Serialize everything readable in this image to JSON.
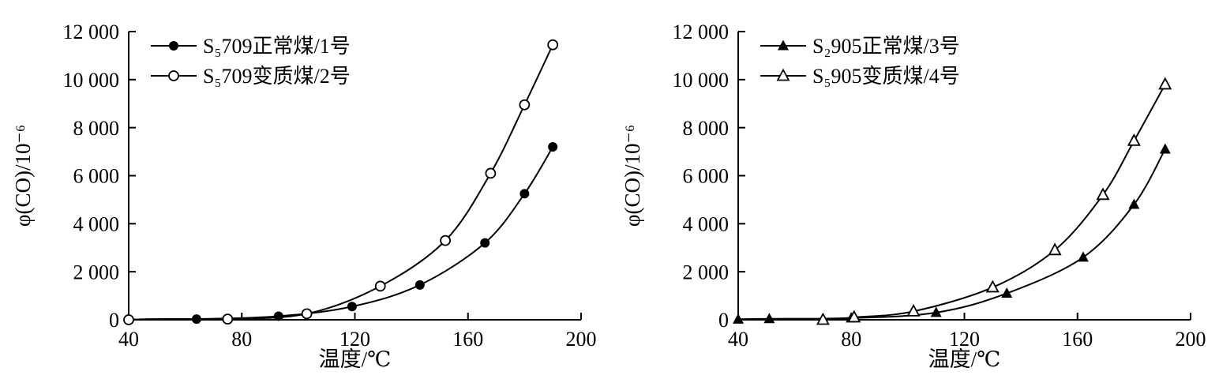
{
  "figure": {
    "background": "#ffffff",
    "line_color": "#000000",
    "text_color": "#000000"
  },
  "chart_data": [
    {
      "type": "line",
      "title": "",
      "xlabel": "温度/℃",
      "ylabel": "φ(CO)/10⁻⁶",
      "xlim": [
        40,
        200
      ],
      "ylim": [
        0,
        12000
      ],
      "xticks": [
        40,
        80,
        120,
        160,
        200
      ],
      "xtick_labels": [
        "40",
        "80",
        "120",
        "160",
        "200"
      ],
      "yticks": [
        0,
        2000,
        4000,
        6000,
        8000,
        10000,
        12000
      ],
      "ytick_labels": [
        "0",
        "2 000",
        "4 000",
        "6 000",
        "8 000",
        "10 000",
        "12 000"
      ],
      "grid": false,
      "legend_position": "top-left",
      "series": [
        {
          "name": "S₅709正常煤/1号",
          "marker": "circle-filled",
          "x": [
            40,
            64,
            93,
            119,
            143,
            166,
            180,
            190
          ],
          "y": [
            0,
            30,
            150,
            550,
            1450,
            3200,
            5250,
            7200
          ]
        },
        {
          "name": "S₅709变质煤/2号",
          "marker": "circle-open",
          "x": [
            40,
            75,
            103,
            129,
            152,
            168,
            180,
            190
          ],
          "y": [
            0,
            30,
            250,
            1400,
            3300,
            6100,
            8950,
            11450
          ]
        }
      ]
    },
    {
      "type": "line",
      "title": "",
      "xlabel": "温度/℃",
      "ylabel": "φ(CO)/10⁻⁶",
      "xlim": [
        40,
        200
      ],
      "ylim": [
        0,
        12000
      ],
      "xticks": [
        40,
        80,
        120,
        160,
        200
      ],
      "xtick_labels": [
        "40",
        "80",
        "120",
        "160",
        "200"
      ],
      "yticks": [
        0,
        2000,
        4000,
        6000,
        8000,
        10000,
        12000
      ],
      "ytick_labels": [
        "0",
        "2 000",
        "4 000",
        "6 000",
        "8 000",
        "10 000",
        "12 000"
      ],
      "grid": false,
      "legend_position": "top-left",
      "series": [
        {
          "name": "S₂905正常煤/3号",
          "marker": "triangle-filled",
          "x": [
            40,
            51,
            80,
            110,
            135,
            162,
            180,
            191
          ],
          "y": [
            20,
            40,
            70,
            300,
            1100,
            2600,
            4800,
            7100
          ]
        },
        {
          "name": "S₅905变质煤/4号",
          "marker": "triangle-open",
          "x": [
            70,
            81,
            102,
            130,
            152,
            169,
            180,
            191
          ],
          "y": [
            0,
            100,
            350,
            1350,
            2900,
            5200,
            7450,
            9800
          ]
        }
      ]
    }
  ]
}
